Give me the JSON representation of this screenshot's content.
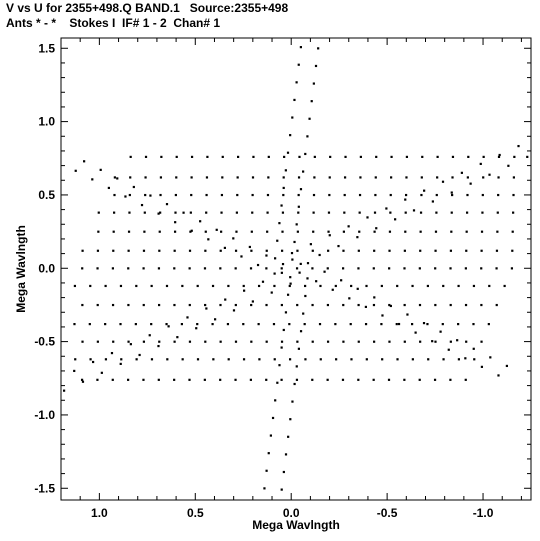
{
  "chart_data": {
    "type": "scatter",
    "title": "V vs U for 2355+498.Q BAND.1   Source:2355+498",
    "subtitle": "Ants * - *    Stokes I  IF# 1 - 2  Chan# 1",
    "xlabel": "Mega Wavlngth",
    "ylabel": "Mega Wavlngth",
    "xlim": [
      1.2,
      -1.25
    ],
    "ylim": [
      -1.58,
      1.57
    ],
    "x_ticks": [
      1.0,
      0.5,
      0.0,
      -0.5,
      -1.0
    ],
    "x_tick_labels": [
      "1.0",
      "0.5",
      "0.0",
      "-0.5",
      "-1.0"
    ],
    "y_ticks": [
      -1.5,
      -1.0,
      -0.5,
      0.0,
      0.5,
      1.0,
      1.5
    ],
    "y_tick_labels": [
      "-1.5",
      "-1.0",
      "-0.5",
      "0.0",
      "0.5",
      "1.0",
      "1.5"
    ],
    "grid": false,
    "marker_color": "#000000",
    "arms": [
      {
        "u": -0.14,
        "v": 1.5
      },
      {
        "u": -1.23,
        "v": 0.76
      },
      {
        "u": -1.08,
        "v": -0.73
      },
      {
        "u": 0.14,
        "v": -1.5
      },
      {
        "u": 1.23,
        "v": -0.76
      },
      {
        "u": 1.08,
        "v": 0.73
      }
    ],
    "samples_per_track": [
      0.04,
      0.12,
      0.2,
      0.28,
      0.36,
      0.44,
      0.52,
      0.6,
      0.68,
      0.76,
      0.84,
      0.92,
      1.0
    ],
    "row_levels": [
      0.76,
      0.62,
      0.5,
      0.38,
      0.25,
      0.12,
      0.0,
      -0.12,
      -0.25,
      -0.38,
      -0.5,
      -0.62,
      -0.76
    ]
  }
}
